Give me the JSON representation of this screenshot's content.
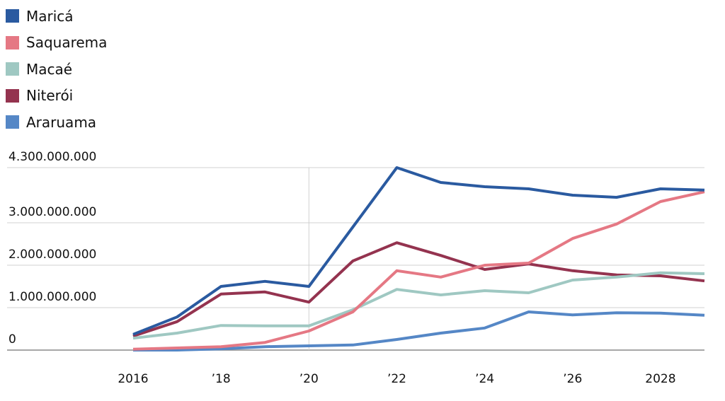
{
  "chart_data": {
    "type": "line",
    "title": "",
    "xlabel": "",
    "ylabel": "",
    "x": [
      2016,
      2017,
      2018,
      2019,
      2020,
      2021,
      2022,
      2023,
      2024,
      2025,
      2026,
      2027,
      2028,
      2029
    ],
    "xlim": [
      2016,
      2029
    ],
    "ylim": [
      0,
      4300000000
    ],
    "x_ticks": [
      {
        "value": 2016,
        "label": "2016"
      },
      {
        "value": 2018,
        "label": "’18"
      },
      {
        "value": 2020,
        "label": "’20"
      },
      {
        "value": 2022,
        "label": "’22"
      },
      {
        "value": 2024,
        "label": "’24"
      },
      {
        "value": 2026,
        "label": "’26"
      },
      {
        "value": 2028,
        "label": "2028"
      }
    ],
    "y_ticks": [
      {
        "value": 0,
        "label": "0"
      },
      {
        "value": 1000000000,
        "label": "1.000.000.000"
      },
      {
        "value": 2000000000,
        "label": "2.000.000.000"
      },
      {
        "value": 3000000000,
        "label": "3.000.000.000"
      },
      {
        "value": 4300000000,
        "label": "4.300.000.000"
      }
    ],
    "grid": true,
    "legend_placement": "top-left",
    "series": [
      {
        "name": "Maricá",
        "color": "#2a5aa0",
        "values": [
          370000000,
          780000000,
          1500000000,
          1620000000,
          1500000000,
          2900000000,
          4300000000,
          3950000000,
          3850000000,
          3800000000,
          3650000000,
          3600000000,
          3800000000,
          3770000000
        ]
      },
      {
        "name": "Saquarema",
        "color": "#e57884",
        "values": [
          20000000,
          50000000,
          80000000,
          180000000,
          450000000,
          900000000,
          1870000000,
          1720000000,
          2000000000,
          2050000000,
          2630000000,
          2970000000,
          3500000000,
          3730000000
        ]
      },
      {
        "name": "Macaé",
        "color": "#9fc8c2",
        "values": [
          280000000,
          400000000,
          580000000,
          570000000,
          570000000,
          950000000,
          1430000000,
          1300000000,
          1400000000,
          1350000000,
          1650000000,
          1720000000,
          1820000000,
          1800000000
        ]
      },
      {
        "name": "Niterói",
        "color": "#94334f",
        "values": [
          330000000,
          670000000,
          1320000000,
          1370000000,
          1130000000,
          2100000000,
          2530000000,
          2230000000,
          1900000000,
          2030000000,
          1870000000,
          1770000000,
          1750000000,
          1630000000
        ]
      },
      {
        "name": "Araruama",
        "color": "#5587c6",
        "values": [
          0,
          0,
          30000000,
          80000000,
          100000000,
          120000000,
          250000000,
          400000000,
          520000000,
          900000000,
          830000000,
          880000000,
          870000000,
          820000000
        ]
      }
    ]
  }
}
